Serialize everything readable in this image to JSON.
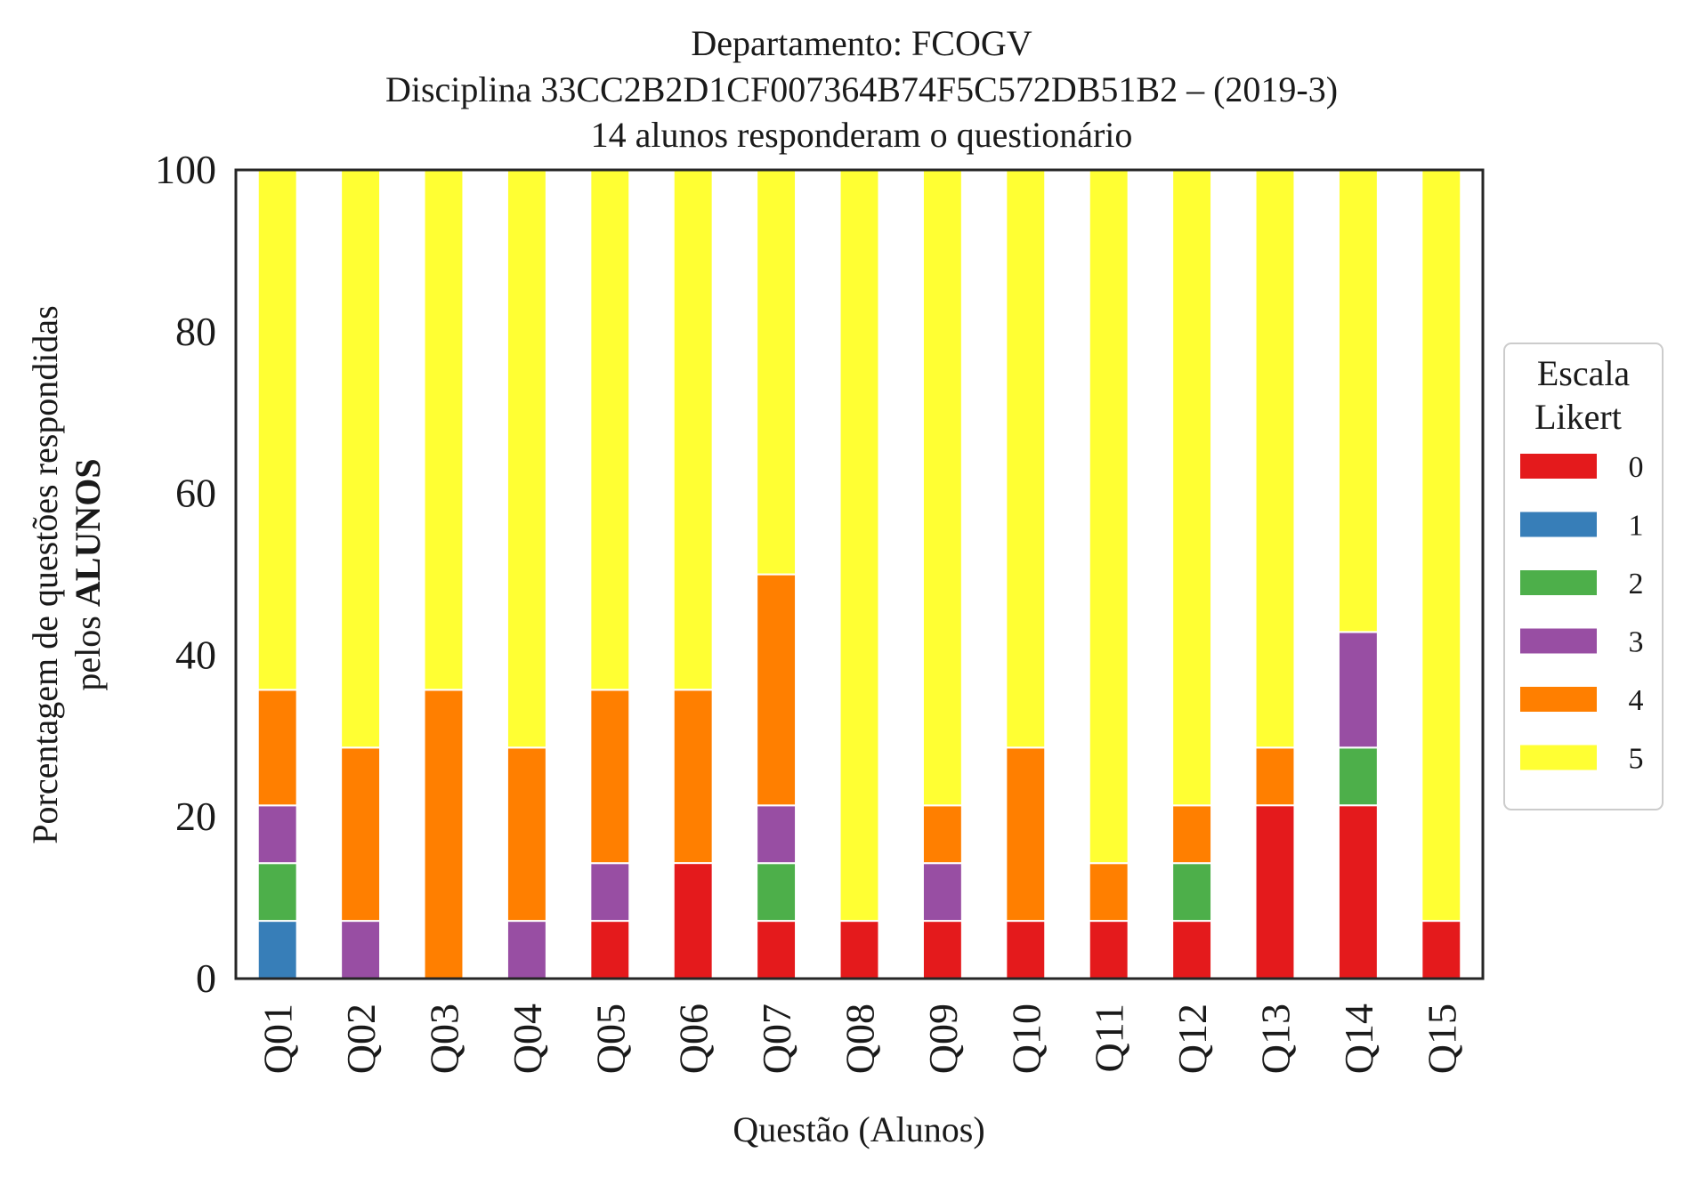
{
  "chart_data": {
    "type": "bar",
    "stacked": true,
    "title_lines": [
      "Departamento: FCOGV",
      "Disciplina 33CC2B2D1CF007364B74F5C572DB51B2 – (2019-3)",
      "14 alunos responderam o questionário"
    ],
    "xlabel": "Questão (Alunos)",
    "ylabel_line1": "Porcentagem de questões respondidas",
    "ylabel_line2_prefix": "pelos ",
    "ylabel_line2_bold": "ALUNOS",
    "ylim": [
      0,
      100
    ],
    "yticks": [
      0,
      20,
      40,
      60,
      80,
      100
    ],
    "grid": false,
    "legend": {
      "title_line1": "Escala",
      "title_line2": "Likert",
      "placement": "right"
    },
    "categories": [
      "Q01",
      "Q02",
      "Q03",
      "Q04",
      "Q05",
      "Q06",
      "Q07",
      "Q08",
      "Q09",
      "Q10",
      "Q11",
      "Q12",
      "Q13",
      "Q14",
      "Q15"
    ],
    "series": [
      {
        "name": "0",
        "color": "#e41a1c",
        "values": [
          0,
          0,
          0,
          0,
          7.14,
          14.29,
          7.14,
          7.14,
          7.14,
          7.14,
          7.14,
          7.14,
          21.43,
          21.43,
          7.14
        ]
      },
      {
        "name": "1",
        "color": "#377eb8",
        "values": [
          7.14,
          0,
          0,
          0,
          0,
          0,
          0,
          0,
          0,
          0,
          0,
          0,
          0,
          0,
          0
        ]
      },
      {
        "name": "2",
        "color": "#4daf4a",
        "values": [
          7.14,
          0,
          0,
          0,
          0,
          0,
          7.14,
          0,
          0,
          0,
          0,
          7.14,
          0,
          7.14,
          0
        ]
      },
      {
        "name": "3",
        "color": "#984ea3",
        "values": [
          7.14,
          7.14,
          0,
          7.14,
          7.14,
          0,
          7.14,
          0,
          7.14,
          0,
          0,
          0,
          0,
          14.29,
          0
        ]
      },
      {
        "name": "4",
        "color": "#ff7f00",
        "values": [
          14.29,
          21.43,
          35.71,
          21.43,
          21.43,
          21.43,
          28.57,
          0,
          7.14,
          21.43,
          7.14,
          7.14,
          7.14,
          0,
          0
        ]
      },
      {
        "name": "5",
        "color": "#ffff33",
        "values": [
          64.29,
          71.43,
          64.29,
          71.43,
          64.29,
          64.29,
          50.0,
          92.86,
          78.57,
          71.43,
          85.71,
          78.57,
          71.43,
          57.14,
          92.86
        ]
      }
    ]
  }
}
